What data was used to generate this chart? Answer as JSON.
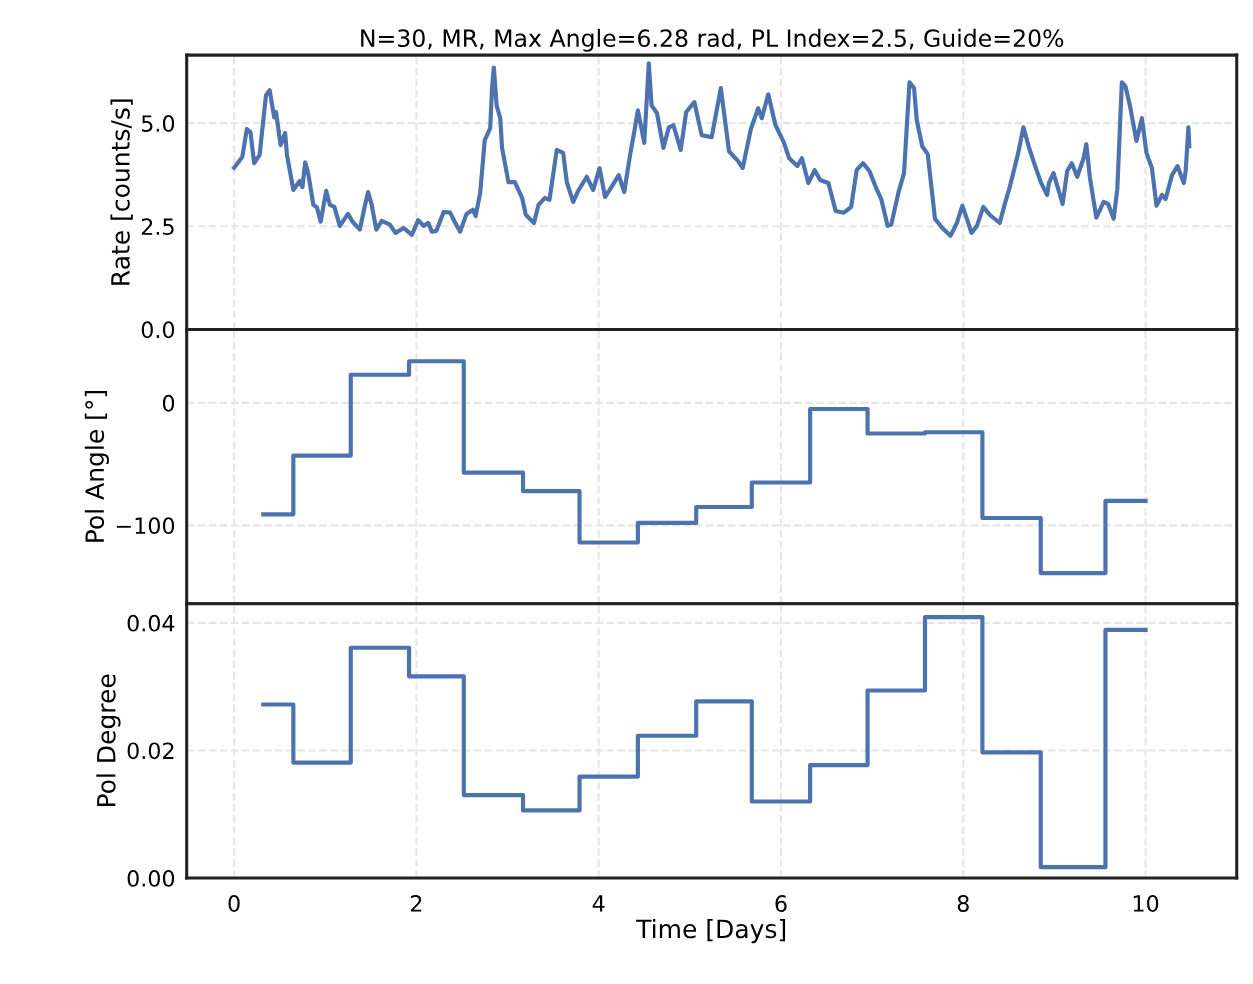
{
  "chart_data": [
    {
      "type": "line",
      "title": "N=30, MR, Max Angle=6.28 rad, PL Index=2.5, Guide=20%",
      "ylabel": "Rate [counts/s]",
      "x": [
        0.0,
        0.09,
        0.14,
        0.18,
        0.22,
        0.28,
        0.35,
        0.39,
        0.44,
        0.46,
        0.51,
        0.56,
        0.58,
        0.65,
        0.72,
        0.75,
        0.78,
        0.81,
        0.87,
        0.91,
        0.95,
        1.01,
        1.05,
        1.1,
        1.16,
        1.25,
        1.3,
        1.38,
        1.43,
        1.47,
        1.51,
        1.56,
        1.62,
        1.71,
        1.77,
        1.86,
        1.95,
        2.02,
        2.08,
        2.13,
        2.17,
        2.22,
        2.3,
        2.37,
        2.42,
        2.48,
        2.55,
        2.62,
        2.65,
        2.7,
        2.75,
        2.81,
        2.83,
        2.85,
        2.88,
        2.92,
        2.94,
        3.01,
        3.08,
        3.16,
        3.2,
        3.29,
        3.34,
        3.41,
        3.46,
        3.54,
        3.61,
        3.65,
        3.72,
        3.78,
        3.87,
        3.94,
        4.01,
        4.07,
        4.14,
        4.22,
        4.28,
        4.35,
        4.39,
        4.43,
        4.5,
        4.55,
        4.58,
        4.64,
        4.71,
        4.77,
        4.82,
        4.9,
        4.96,
        5.05,
        5.13,
        5.24,
        5.34,
        5.43,
        5.53,
        5.58,
        5.67,
        5.75,
        5.79,
        5.86,
        5.94,
        6.03,
        6.09,
        6.18,
        6.23,
        6.3,
        6.37,
        6.43,
        6.52,
        6.6,
        6.69,
        6.77,
        6.83,
        6.9,
        6.97,
        7.04,
        7.1,
        7.17,
        7.21,
        7.29,
        7.35,
        7.38,
        7.41,
        7.46,
        7.49,
        7.55,
        7.61,
        7.69,
        7.77,
        7.86,
        7.93,
        7.99,
        8.04,
        8.09,
        8.15,
        8.22,
        8.29,
        8.4,
        8.45,
        8.51,
        8.6,
        8.66,
        8.72,
        8.77,
        8.85,
        8.92,
        8.94,
        8.99,
        9.09,
        9.14,
        9.19,
        9.25,
        9.32,
        9.35,
        9.39,
        9.46,
        9.54,
        9.59,
        9.65,
        9.69,
        9.74,
        9.78,
        9.83,
        9.9,
        9.96,
        10.01,
        10.07,
        10.12,
        10.18,
        10.22,
        10.29,
        10.35,
        10.42,
        10.44,
        10.47,
        10.48
      ],
      "series": [
        {
          "color": "#4c72b0",
          "values": [
            3.92,
            4.18,
            4.86,
            4.78,
            4.03,
            4.23,
            5.68,
            5.8,
            5.14,
            5.27,
            4.47,
            4.76,
            4.23,
            3.38,
            3.6,
            3.45,
            4.05,
            3.82,
            3.02,
            2.95,
            2.61,
            3.36,
            3.02,
            2.97,
            2.51,
            2.8,
            2.61,
            2.42,
            2.95,
            3.33,
            3.02,
            2.42,
            2.63,
            2.54,
            2.34,
            2.46,
            2.29,
            2.65,
            2.51,
            2.58,
            2.37,
            2.39,
            2.85,
            2.83,
            2.61,
            2.37,
            2.8,
            2.9,
            2.75,
            3.31,
            4.59,
            4.88,
            5.85,
            6.35,
            5.43,
            5.12,
            4.4,
            3.57,
            3.57,
            3.19,
            2.78,
            2.58,
            3.02,
            3.19,
            3.14,
            4.35,
            4.28,
            3.57,
            3.09,
            3.38,
            3.7,
            3.38,
            3.91,
            3.21,
            3.45,
            3.74,
            3.33,
            4.3,
            4.78,
            5.31,
            4.52,
            6.45,
            5.43,
            5.24,
            4.4,
            4.9,
            4.95,
            4.35,
            5.27,
            5.51,
            4.71,
            4.66,
            5.85,
            4.32,
            4.08,
            3.91,
            4.86,
            5.36,
            5.12,
            5.7,
            4.95,
            4.54,
            4.15,
            3.96,
            4.15,
            3.55,
            3.86,
            3.62,
            3.55,
            2.87,
            2.83,
            2.97,
            3.86,
            4.03,
            3.84,
            3.45,
            3.16,
            2.51,
            2.54,
            3.33,
            3.79,
            4.9,
            5.99,
            5.85,
            5.07,
            4.44,
            4.25,
            2.68,
            2.46,
            2.27,
            2.58,
            3.0,
            2.68,
            2.34,
            2.51,
            2.97,
            2.78,
            2.58,
            3.0,
            3.45,
            4.25,
            4.9,
            4.42,
            4.08,
            3.57,
            3.26,
            3.55,
            3.79,
            3.04,
            3.84,
            4.03,
            3.7,
            4.15,
            4.49,
            3.67,
            2.71,
            3.09,
            3.04,
            2.68,
            3.4,
            5.99,
            5.89,
            5.41,
            4.57,
            5.12,
            4.28,
            3.91,
            3.0,
            3.26,
            3.16,
            3.74,
            3.96,
            3.55,
            3.84,
            4.9,
            4.44
          ]
        }
      ],
      "xlim": [
        -0.52,
        11.0
      ],
      "xticks": [
        0,
        2,
        4,
        6,
        8,
        10
      ],
      "ylim": [
        0,
        6.65
      ],
      "yticks": [
        {
          "value": 0,
          "label": "0.0"
        },
        {
          "value": 2.5,
          "label": "2.5"
        },
        {
          "value": 5,
          "label": "5.0"
        }
      ],
      "tick_labels": "y",
      "grid": true,
      "line_style": "solid",
      "legend": false
    },
    {
      "type": "step",
      "ylabel": "Pol Angle [°]",
      "x": [
        0.32,
        0.65,
        1.28,
        1.92,
        2.52,
        3.17,
        3.79,
        4.43,
        5.07,
        5.68,
        6.32,
        6.95,
        7.58,
        8.21,
        8.85,
        9.56,
        10.0
      ],
      "series": [
        {
          "color": "#4c72b0",
          "values": [
            -91,
            -43,
            23,
            34,
            -57,
            -72,
            -114,
            -98,
            -85,
            -65,
            -5,
            -25,
            -24,
            -94,
            -139,
            -80,
            -80
          ]
        }
      ],
      "xlim": [
        -0.52,
        11.0
      ],
      "xticks": [
        0,
        2,
        4,
        6,
        8,
        10
      ],
      "ylim": [
        -164,
        60
      ],
      "yticks": [
        {
          "value": -100,
          "label": "−100"
        },
        0
      ],
      "tick_labels": "y",
      "grid": true,
      "line_style": "solid",
      "legend": false
    },
    {
      "type": "step",
      "ylabel": "Pol Degree",
      "xlabel": "Time [Days]",
      "x": [
        0.32,
        0.65,
        1.28,
        1.92,
        2.52,
        3.17,
        3.79,
        4.43,
        5.07,
        5.68,
        6.32,
        6.95,
        7.58,
        8.21,
        8.85,
        9.56,
        10.0
      ],
      "series": [
        {
          "color": "#4c72b0",
          "values": [
            0.0272,
            0.0181,
            0.0361,
            0.0316,
            0.013,
            0.0106,
            0.0159,
            0.0223,
            0.0277,
            0.012,
            0.0177,
            0.0294,
            0.0409,
            0.0197,
            0.0017,
            0.0389,
            0.0389
          ]
        }
      ],
      "xlim": [
        -0.52,
        11.0
      ],
      "xticks": [
        0,
        2,
        4,
        6,
        8,
        10
      ],
      "ylim": [
        0,
        0.043
      ],
      "yticks": [
        {
          "value": 0,
          "label": "0.00"
        },
        {
          "value": 0.02,
          "label": "0.02"
        },
        {
          "value": 0.04,
          "label": "0.04"
        }
      ],
      "grid": true,
      "line_style": "solid",
      "legend": false
    }
  ]
}
